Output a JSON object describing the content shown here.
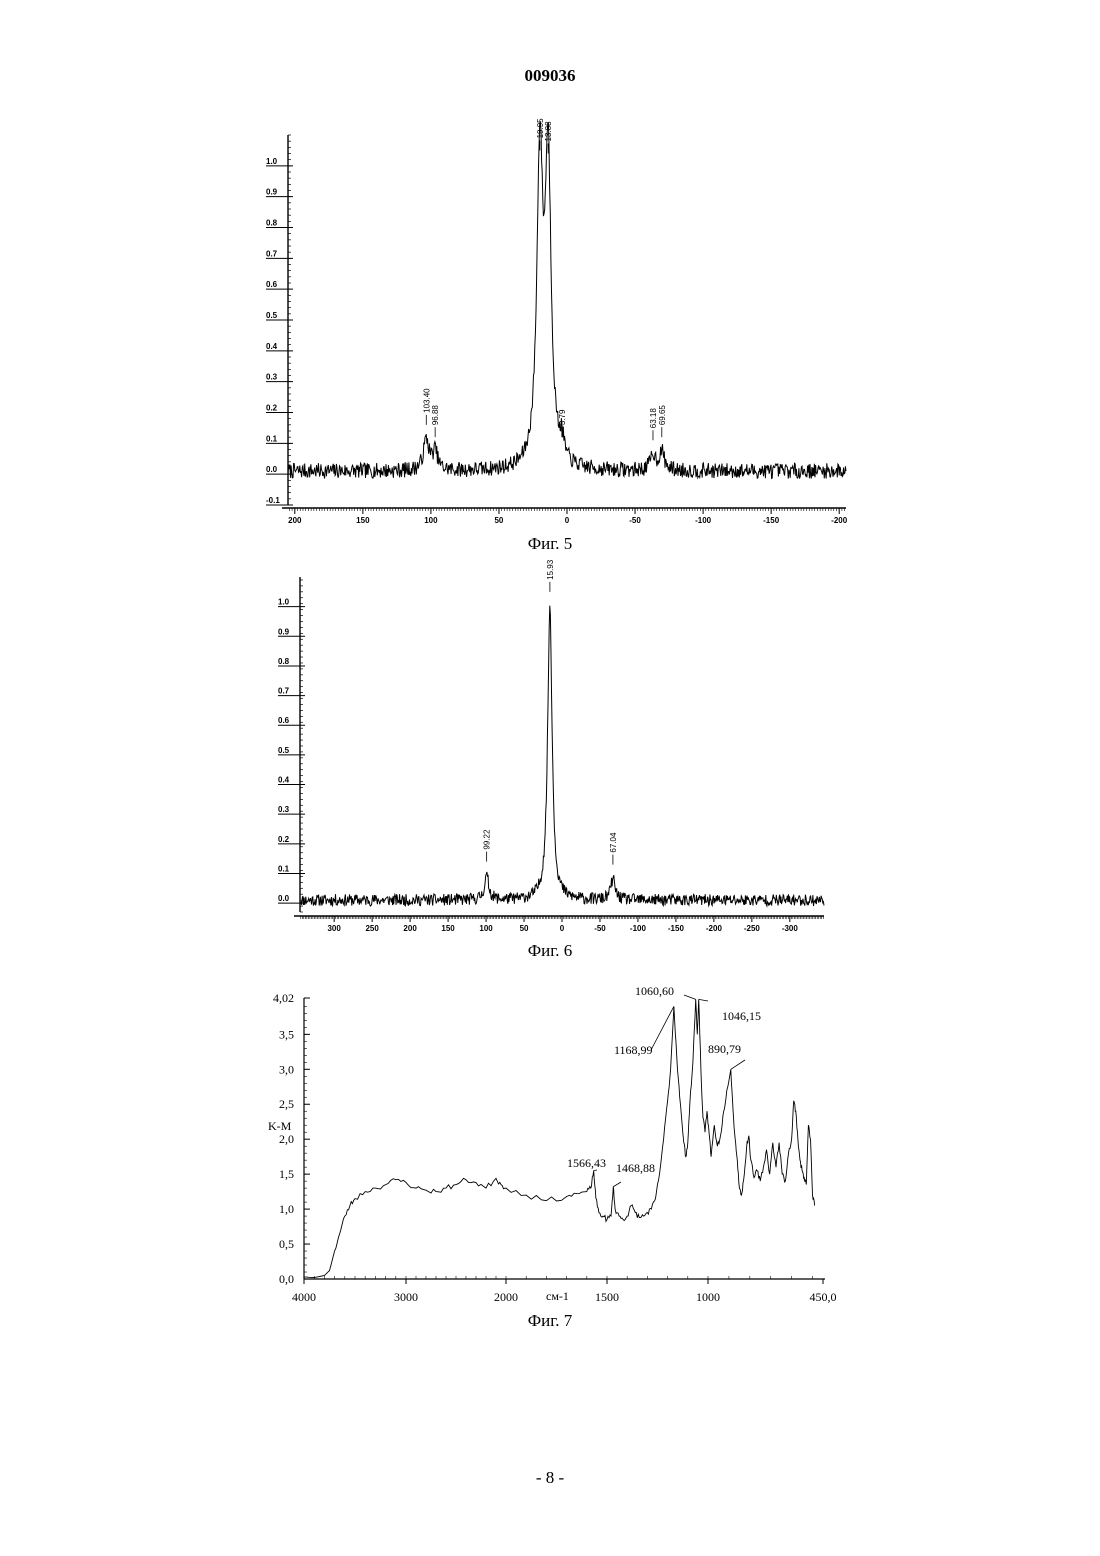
{
  "header": {
    "doc_number": "009036"
  },
  "footer": {
    "page": "- 8 -"
  },
  "chart_data": [
    {
      "type": "line",
      "caption": "Фиг. 5",
      "xlim": [
        205,
        -205
      ],
      "ylim": [
        -0.1,
        1.1
      ],
      "x_ticks": [
        200,
        150,
        100,
        50,
        0,
        -50,
        -100,
        -150,
        -200
      ],
      "x_tick_labels": [
        "200",
        "150",
        "100",
        "50",
        "0",
        "-50",
        "-100",
        "-150",
        "-200"
      ],
      "y_ticks": [
        -0.1,
        0.0,
        0.1,
        0.2,
        0.3,
        0.4,
        0.5,
        0.6,
        0.7,
        0.8,
        0.9,
        1.0
      ],
      "y_tick_labels": [
        "-0.1",
        "0.0",
        "0.1",
        "0.2",
        "0.3",
        "0.4",
        "0.5",
        "0.6",
        "0.7",
        "0.8",
        "0.9",
        "1.0"
      ],
      "baseline": 0.01,
      "noise": 0.025,
      "peaks": [
        {
          "x": 103.4,
          "height": 0.1,
          "width": 2.5,
          "label": "103.40"
        },
        {
          "x": 96.88,
          "height": 0.06,
          "width": 2.2,
          "label": "96.88"
        },
        {
          "x": 19.95,
          "height": 0.99,
          "width": 2.6,
          "label": "19.95"
        },
        {
          "x": 13.88,
          "height": 0.98,
          "width": 2.6,
          "label": "13.88"
        },
        {
          "x": 3.79,
          "height": 0.06,
          "width": 2.0,
          "label": "3.79"
        },
        {
          "x": -63.18,
          "height": 0.05,
          "width": 2.3,
          "label": "63.18"
        },
        {
          "x": -69.65,
          "height": 0.06,
          "width": 2.3,
          "label": "69.65"
        }
      ]
    },
    {
      "type": "line",
      "caption": "Фиг. 6",
      "xlim": [
        345,
        -345
      ],
      "ylim": [
        -0.03,
        1.1
      ],
      "x_ticks": [
        300,
        250,
        200,
        150,
        100,
        50,
        0,
        -50,
        -100,
        -150,
        -200,
        -250,
        -300
      ],
      "x_tick_labels": [
        "300",
        "250",
        "200",
        "150",
        "100",
        "50",
        "0",
        "-50",
        "-100",
        "-150",
        "-200",
        "-250",
        "-300"
      ],
      "y_ticks": [
        0.0,
        0.1,
        0.2,
        0.3,
        0.4,
        0.5,
        0.6,
        0.7,
        0.8,
        0.9,
        1.0
      ],
      "y_tick_labels": [
        "0.0",
        "0.1",
        "0.2",
        "0.3",
        "0.4",
        "0.5",
        "0.6",
        "0.7",
        "0.8",
        "0.9",
        "1.0"
      ],
      "baseline": 0.01,
      "noise": 0.02,
      "peaks": [
        {
          "x": 99.22,
          "height": 0.08,
          "width": 3.5,
          "label": "99.22"
        },
        {
          "x": 15.93,
          "height": 0.99,
          "width": 3.5,
          "label": "15.93"
        },
        {
          "x": -67.04,
          "height": 0.07,
          "width": 3.5,
          "label": "67.04"
        }
      ]
    },
    {
      "type": "line",
      "caption": "Фиг. 7",
      "xlabel": "см-1",
      "ylabel": "K-M",
      "xlim": [
        4000,
        450
      ],
      "ylim": [
        0,
        4.02
      ],
      "x_ticks": [
        4000,
        3000,
        2000,
        1500,
        1000,
        450
      ],
      "x_tick_labels": [
        "4000",
        "3000",
        "2000",
        "1500",
        "1000",
        "450,0"
      ],
      "y_ticks": [
        0,
        0.5,
        1.0,
        1.5,
        2.0,
        2.5,
        3.0,
        3.5,
        4.02
      ],
      "y_tick_labels": [
        "0,0",
        "0,5",
        "1,0",
        "1,5",
        "2,0",
        "2,5",
        "3,0",
        "3,5",
        "4,02"
      ],
      "points": [
        [
          4000,
          0.03
        ],
        [
          3900,
          0.02
        ],
        [
          3800,
          0.05
        ],
        [
          3750,
          0.12
        ],
        [
          3700,
          0.4
        ],
        [
          3650,
          0.65
        ],
        [
          3600,
          0.9
        ],
        [
          3550,
          1.05
        ],
        [
          3500,
          1.15
        ],
        [
          3400,
          1.25
        ],
        [
          3300,
          1.3
        ],
        [
          3200,
          1.35
        ],
        [
          3100,
          1.42
        ],
        [
          3000,
          1.38
        ],
        [
          2900,
          1.3
        ],
        [
          2800,
          1.27
        ],
        [
          2700,
          1.25
        ],
        [
          2600,
          1.3
        ],
        [
          2500,
          1.35
        ],
        [
          2400,
          1.42
        ],
        [
          2300,
          1.38
        ],
        [
          2200,
          1.3
        ],
        [
          2100,
          1.44
        ],
        [
          2050,
          1.35
        ],
        [
          2000,
          1.3
        ],
        [
          1900,
          1.2
        ],
        [
          1800,
          1.12
        ],
        [
          1700,
          1.18
        ],
        [
          1650,
          1.22
        ],
        [
          1600,
          1.25
        ],
        [
          1580,
          1.3
        ],
        [
          1566,
          1.55
        ],
        [
          1555,
          1.15
        ],
        [
          1540,
          0.95
        ],
        [
          1520,
          0.9
        ],
        [
          1500,
          0.85
        ],
        [
          1480,
          0.9
        ],
        [
          1469,
          1.32
        ],
        [
          1460,
          1.0
        ],
        [
          1440,
          0.9
        ],
        [
          1420,
          0.85
        ],
        [
          1400,
          0.9
        ],
        [
          1380,
          1.05
        ],
        [
          1360,
          0.95
        ],
        [
          1340,
          0.88
        ],
        [
          1320,
          0.9
        ],
        [
          1300,
          0.95
        ],
        [
          1280,
          1.0
        ],
        [
          1260,
          1.15
        ],
        [
          1240,
          1.5
        ],
        [
          1220,
          2.0
        ],
        [
          1200,
          2.55
        ],
        [
          1185,
          3.0
        ],
        [
          1169,
          3.9
        ],
        [
          1155,
          3.2
        ],
        [
          1140,
          2.6
        ],
        [
          1120,
          1.95
        ],
        [
          1110,
          1.75
        ],
        [
          1100,
          1.95
        ],
        [
          1090,
          2.5
        ],
        [
          1075,
          3.1
        ],
        [
          1061,
          4.0
        ],
        [
          1053,
          3.5
        ],
        [
          1046,
          4.0
        ],
        [
          1035,
          3.0
        ],
        [
          1025,
          2.3
        ],
        [
          1015,
          2.1
        ],
        [
          1005,
          2.4
        ],
        [
          995,
          2.1
        ],
        [
          985,
          1.75
        ],
        [
          970,
          2.2
        ],
        [
          955,
          1.9
        ],
        [
          940,
          2.05
        ],
        [
          925,
          2.4
        ],
        [
          910,
          2.7
        ],
        [
          891,
          3.0
        ],
        [
          880,
          2.4
        ],
        [
          870,
          2.0
        ],
        [
          860,
          1.7
        ],
        [
          850,
          1.3
        ],
        [
          840,
          1.2
        ],
        [
          830,
          1.4
        ],
        [
          815,
          1.9
        ],
        [
          805,
          2.05
        ],
        [
          795,
          1.7
        ],
        [
          780,
          1.45
        ],
        [
          765,
          1.55
        ],
        [
          750,
          1.4
        ],
        [
          735,
          1.6
        ],
        [
          720,
          1.85
        ],
        [
          705,
          1.5
        ],
        [
          690,
          1.95
        ],
        [
          675,
          1.6
        ],
        [
          660,
          1.95
        ],
        [
          645,
          1.5
        ],
        [
          630,
          1.4
        ],
        [
          615,
          1.8
        ],
        [
          600,
          2.0
        ],
        [
          590,
          2.55
        ],
        [
          580,
          2.4
        ],
        [
          570,
          2.0
        ],
        [
          560,
          1.7
        ],
        [
          550,
          1.55
        ],
        [
          540,
          1.45
        ],
        [
          530,
          1.35
        ],
        [
          520,
          2.2
        ],
        [
          510,
          2.0
        ],
        [
          500,
          1.2
        ],
        [
          490,
          1.05
        ]
      ],
      "annotations": [
        {
          "x": 1566.43,
          "y": 1.55,
          "label": "1566,43"
        },
        {
          "x": 1468.88,
          "y": 1.32,
          "label": "1468,88"
        },
        {
          "x": 1168.99,
          "y": 3.9,
          "label": "1168,99"
        },
        {
          "x": 1060.6,
          "y": 4.0,
          "label": "1060,60"
        },
        {
          "x": 1046.15,
          "y": 4.0,
          "label": "1046,15"
        },
        {
          "x": 890.79,
          "y": 3.0,
          "label": "890,79"
        }
      ]
    }
  ]
}
